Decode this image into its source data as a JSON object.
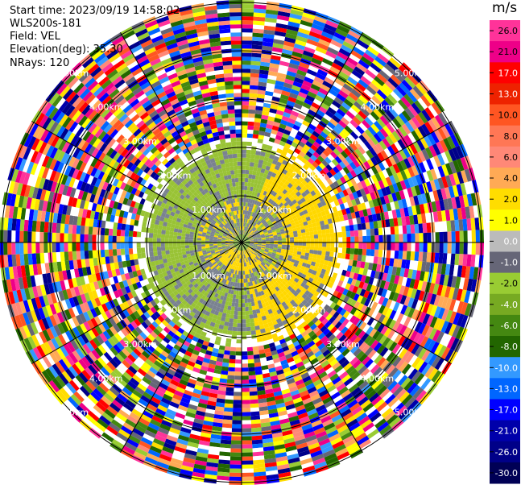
{
  "header": {
    "start_time": "Start time: 2023/09/19 14:58:02",
    "site": "WLS200s-181",
    "field": "Field: VEL",
    "elevation": "Elevation(deg): 35.30",
    "nrays": "NRays: 120"
  },
  "chart_data": {
    "type": "heatmap",
    "projection": "polar PPI",
    "field": "VEL",
    "units": "m/s",
    "n_rays": 120,
    "range_rings_labels": [
      "1.00km",
      "2.00km",
      "3.00km",
      "4.00km",
      "5.00km"
    ],
    "azimuth_spokes_deg": [
      0,
      30,
      60,
      90,
      120,
      150,
      180,
      210,
      240,
      270,
      300,
      330
    ],
    "colorbar": {
      "title": "m/s",
      "ticks": [
        "26.0",
        "21.0",
        "17.0",
        "13.0",
        "10.0",
        "8.0",
        "6.0",
        "4.0",
        "2.0",
        "1.0",
        "0.0",
        "-1.0",
        "-2.0",
        "-4.0",
        "-6.0",
        "-8.0",
        "-10.0",
        "-13.0",
        "-17.0",
        "-21.0",
        "-26.0",
        "-30.0"
      ],
      "colors": [
        "#ff3399",
        "#ee0088",
        "#ff0000",
        "#ee2200",
        "#ff5522",
        "#ff7755",
        "#ff8877",
        "#ffaa55",
        "#ffdd00",
        "#ffff00",
        "#bbbbbb",
        "#666677",
        "#99cc33",
        "#77aa22",
        "#448811",
        "#226600",
        "#3399ff",
        "#0066ff",
        "#0000ff",
        "#0000aa",
        "#000088",
        "#000055"
      ]
    },
    "inner_region": {
      "description_velocity_classes": [
        "0.0",
        "-1.0",
        "2.0"
      ]
    }
  }
}
